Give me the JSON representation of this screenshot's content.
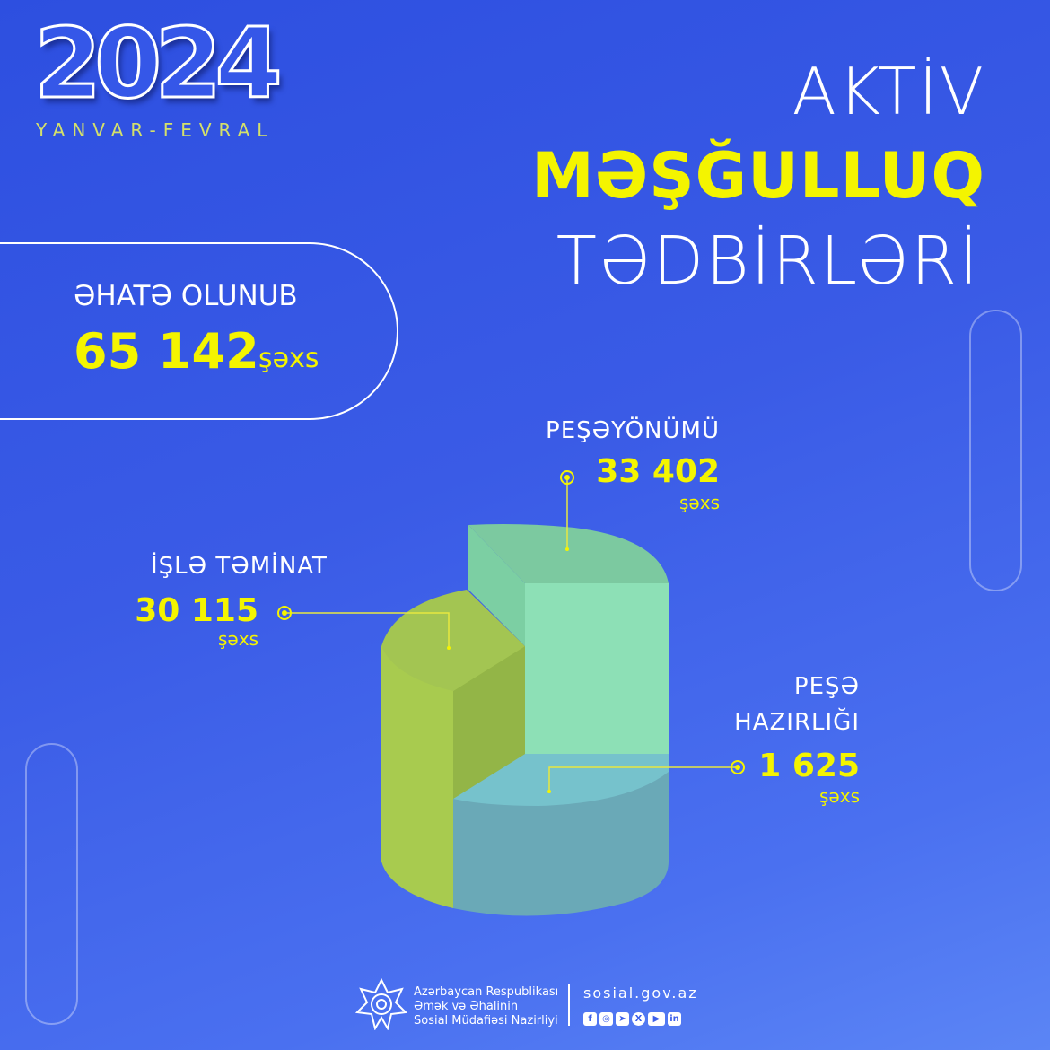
{
  "header": {
    "year": "2024",
    "period": "YANVAR-FEVRAL",
    "title_line1": "AKTİV",
    "title_line2": "MƏŞĞULLUQ",
    "title_line3": "TƏDBİRLƏRİ"
  },
  "summary": {
    "label": "ƏHATƏ OLUNUB",
    "value": "65 142",
    "unit": "şəxs"
  },
  "chart_data": {
    "type": "pie",
    "style": "3d",
    "categories": [
      "PEŞƏYÖNÜMÜ",
      "İŞLƏ TƏMİNAT",
      "PEŞƏ HAZIRLIĞI"
    ],
    "values": [
      33402,
      30115,
      1625
    ],
    "value_labels": [
      "33 402",
      "30 115",
      "1 625"
    ],
    "unit": "şəxs",
    "colors": [
      "#8de0b6",
      "#a6c94a",
      "#6aaab8"
    ],
    "category_lines": [
      [
        "PEŞƏYÖNÜMÜ"
      ],
      [
        "İŞLƏ TƏMİNAT"
      ],
      [
        "PEŞƏ",
        "HAZIRLIĞI"
      ]
    ]
  },
  "colors": {
    "accent": "#f4f400",
    "background": "#3a5be6"
  },
  "footer": {
    "org_line1": "Azərbaycan Respublikası",
    "org_line2": "Əmək və Əhalinin",
    "org_line3": "Sosial Müdafiəsi Nazirliyi",
    "website": "sosial.gov.az",
    "social_icons": [
      "facebook-icon",
      "instagram-icon",
      "telegram-icon",
      "x-icon",
      "youtube-icon",
      "linkedin-icon"
    ]
  }
}
